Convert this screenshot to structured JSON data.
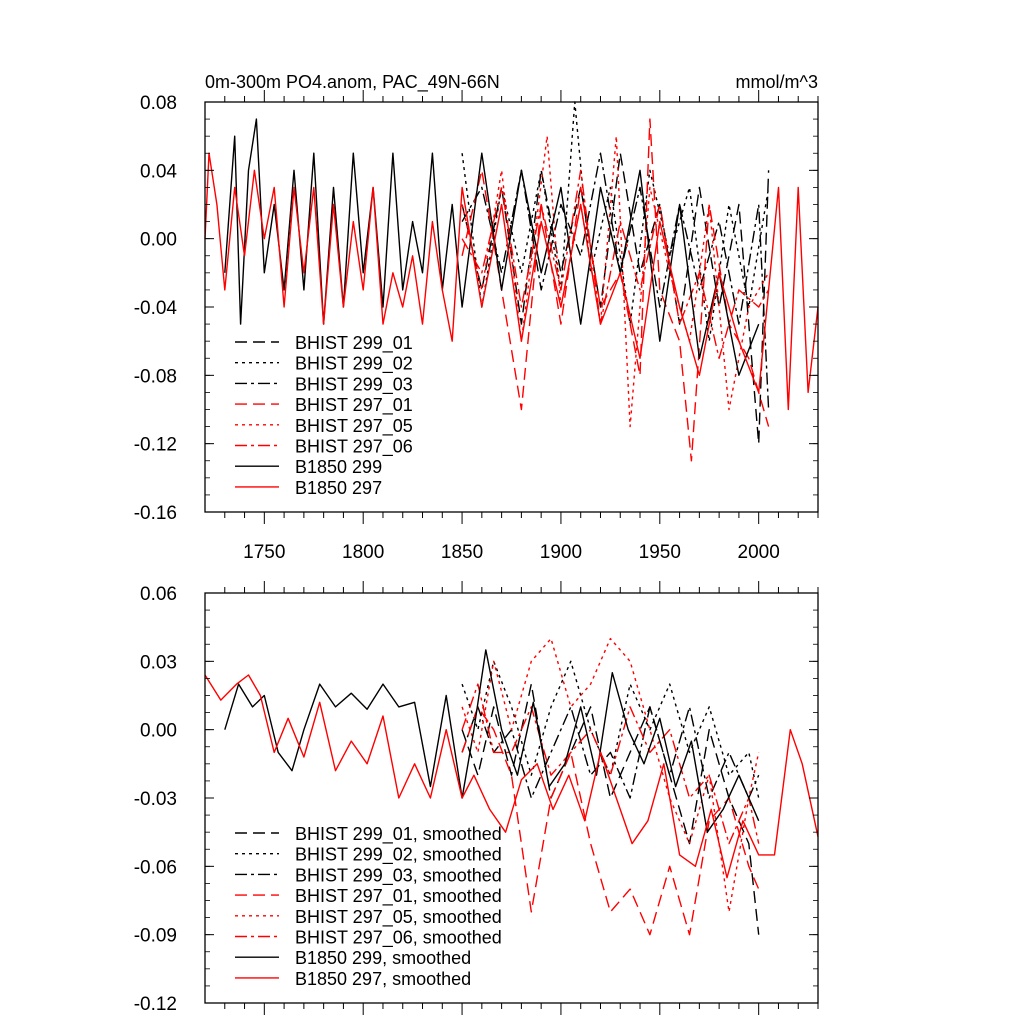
{
  "chart_data": [
    {
      "type": "line",
      "title": "0m-300m PO4.anom, PAC_49N-66N",
      "units": "mmol/m^3",
      "xlim": [
        1720,
        2030
      ],
      "ylim": [
        -0.16,
        0.08
      ],
      "x_ticks": [
        "1750",
        "1800",
        "1850",
        "1900",
        "1950",
        "2000"
      ],
      "y_ticks": [
        "0.08",
        "0.04",
        "0.00",
        "-0.04",
        "-0.08",
        "-0.12",
        "-0.16"
      ],
      "series": [
        {
          "name": "BHIST 299_01",
          "color": "#000000",
          "dash": "dash",
          "start": 1850,
          "end": 2005,
          "x": [
            1850,
            1860,
            1870,
            1880,
            1890,
            1900,
            1910,
            1920,
            1930,
            1940,
            1950,
            1960,
            1970,
            1980,
            1990,
            2000,
            2005
          ],
          "y": [
            0.02,
            -0.03,
            0.03,
            -0.05,
            0.04,
            -0.02,
            0.03,
            -0.04,
            0.05,
            -0.02,
            0.02,
            -0.05,
            0.03,
            -0.04,
            0.02,
            -0.12,
            0.04
          ]
        },
        {
          "name": "BHIST 299_02",
          "color": "#000000",
          "dash": "dot",
          "start": 1850,
          "end": 2005,
          "x": [
            1850,
            1860,
            1870,
            1880,
            1890,
            1900,
            1907,
            1915,
            1925,
            1935,
            1945,
            1955,
            1965,
            1975,
            1985,
            1995,
            2005
          ],
          "y": [
            0.05,
            -0.04,
            0.03,
            -0.02,
            0.04,
            -0.03,
            0.08,
            -0.02,
            0.03,
            -0.05,
            0.04,
            -0.01,
            0.03,
            -0.06,
            0.02,
            -0.04,
            0.03
          ]
        },
        {
          "name": "BHIST 299_03",
          "color": "#000000",
          "dash": "dashdot",
          "start": 1850,
          "end": 2005,
          "x": [
            1850,
            1860,
            1870,
            1880,
            1890,
            1900,
            1910,
            1920,
            1930,
            1940,
            1950,
            1960,
            1970,
            1980,
            1990,
            2000,
            2005
          ],
          "y": [
            0.01,
            0.03,
            -0.02,
            0.04,
            -0.03,
            0.02,
            -0.01,
            0.05,
            -0.02,
            0.03,
            -0.04,
            0.02,
            -0.03,
            0.01,
            -0.05,
            0.02,
            -0.1
          ]
        },
        {
          "name": "BHIST 297_01",
          "color": "#ff0000",
          "dash": "dash",
          "start": 1850,
          "end": 2005,
          "x": [
            1850,
            1860,
            1870,
            1880,
            1890,
            1900,
            1910,
            1920,
            1930,
            1940,
            1945,
            1950,
            1960,
            1966,
            1975,
            1985,
            1995,
            2005
          ],
          "y": [
            -0.01,
            0.04,
            -0.03,
            -0.1,
            0.02,
            -0.05,
            0.03,
            -0.04,
            -0.02,
            -0.08,
            0.07,
            -0.03,
            -0.06,
            -0.13,
            0.02,
            -0.05,
            -0.07,
            -0.11
          ]
        },
        {
          "name": "BHIST 297_05",
          "color": "#ff0000",
          "dash": "dot",
          "start": 1850,
          "end": 2005,
          "x": [
            1850,
            1860,
            1870,
            1880,
            1893,
            1900,
            1910,
            1920,
            1928,
            1935,
            1945,
            1955,
            1965,
            1975,
            1985,
            1995,
            2005
          ],
          "y": [
            0.02,
            -0.03,
            0.04,
            -0.06,
            0.06,
            -0.04,
            0.02,
            -0.05,
            0.06,
            -0.11,
            0.03,
            -0.02,
            -0.06,
            0.02,
            -0.1,
            -0.04,
            -0.02
          ]
        },
        {
          "name": "BHIST 297_06",
          "color": "#ff0000",
          "dash": "dashdot",
          "start": 1850,
          "end": 2005,
          "x": [
            1850,
            1860,
            1870,
            1880,
            1890,
            1900,
            1910,
            1920,
            1930,
            1940,
            1950,
            1960,
            1970,
            1980,
            1990,
            2000,
            2005
          ],
          "y": [
            0.0,
            -0.02,
            0.03,
            -0.04,
            0.02,
            -0.03,
            0.04,
            -0.05,
            0.01,
            -0.03,
            0.02,
            -0.05,
            -0.02,
            -0.07,
            -0.03,
            -0.04,
            -0.03
          ]
        },
        {
          "name": "B1850 299",
          "color": "#000000",
          "dash": "solid",
          "start": 1730,
          "end": 2000,
          "x": [
            1730,
            1735,
            1738,
            1742,
            1746,
            1750,
            1755,
            1760,
            1765,
            1770,
            1775,
            1780,
            1785,
            1790,
            1795,
            1800,
            1805,
            1810,
            1815,
            1820,
            1825,
            1830,
            1835,
            1840,
            1845,
            1850,
            1860,
            1870,
            1880,
            1890,
            1900,
            1910,
            1920,
            1930,
            1940,
            1950,
            1960,
            1970,
            1980,
            1990,
            2000
          ],
          "y": [
            -0.02,
            0.06,
            -0.05,
            0.04,
            0.07,
            -0.02,
            0.02,
            -0.03,
            0.04,
            -0.03,
            0.05,
            -0.05,
            0.03,
            -0.04,
            0.05,
            -0.02,
            0.03,
            -0.04,
            0.05,
            -0.03,
            0.01,
            -0.02,
            0.05,
            -0.03,
            0.02,
            -0.04,
            0.05,
            -0.03,
            0.04,
            -0.02,
            0.03,
            -0.05,
            0.03,
            -0.02,
            0.04,
            -0.06,
            0.02,
            -0.07,
            -0.02,
            -0.08,
            -0.05
          ]
        },
        {
          "name": "B1850 297",
          "color": "#ff0000",
          "dash": "solid",
          "start": 1720,
          "end": 2030,
          "x": [
            1720,
            1722,
            1726,
            1730,
            1735,
            1740,
            1745,
            1750,
            1755,
            1760,
            1765,
            1770,
            1775,
            1780,
            1785,
            1790,
            1795,
            1800,
            1805,
            1810,
            1815,
            1820,
            1825,
            1830,
            1835,
            1840,
            1845,
            1850,
            1860,
            1870,
            1880,
            1890,
            1900,
            1910,
            1920,
            1930,
            1940,
            1950,
            1960,
            1970,
            1980,
            1990,
            2000,
            2010,
            2015,
            2020,
            2025,
            2030
          ],
          "y": [
            0.0,
            0.05,
            0.02,
            -0.03,
            0.03,
            -0.01,
            0.04,
            0.0,
            0.03,
            -0.04,
            0.03,
            -0.02,
            0.03,
            -0.05,
            0.02,
            -0.04,
            0.01,
            -0.03,
            0.03,
            -0.05,
            -0.02,
            -0.04,
            -0.01,
            -0.05,
            0.01,
            -0.03,
            -0.06,
            0.03,
            -0.04,
            0.02,
            -0.06,
            0.01,
            -0.04,
            0.02,
            -0.05,
            -0.02,
            -0.07,
            0.01,
            -0.04,
            -0.08,
            -0.02,
            -0.06,
            -0.09,
            0.03,
            -0.1,
            0.03,
            -0.09,
            -0.04
          ]
        }
      ],
      "legend_position": "bottom-left"
    },
    {
      "type": "line",
      "xlim": [
        1720,
        2030
      ],
      "ylim": [
        -0.12,
        0.06
      ],
      "y_ticks": [
        "0.06",
        "0.03",
        "0.00",
        "-0.03",
        "-0.06",
        "-0.09",
        "-0.12"
      ],
      "series": [
        {
          "name": "BHIST 299_01, smoothed",
          "color": "#000000",
          "dash": "dash",
          "x": [
            1850,
            1858,
            1866,
            1875,
            1885,
            1895,
            1905,
            1915,
            1925,
            1935,
            1945,
            1955,
            1965,
            1975,
            1985,
            1995,
            2000
          ],
          "y": [
            0.0,
            -0.02,
            0.01,
            -0.02,
            0.02,
            -0.03,
            -0.01,
            0.01,
            -0.03,
            -0.01,
            0.01,
            -0.02,
            -0.05,
            0.0,
            -0.03,
            -0.05,
            -0.09
          ]
        },
        {
          "name": "BHIST 299_02, smoothed",
          "color": "#000000",
          "dash": "dot",
          "x": [
            1850,
            1858,
            1866,
            1875,
            1885,
            1895,
            1905,
            1915,
            1925,
            1935,
            1945,
            1955,
            1965,
            1975,
            1985,
            1995,
            2000
          ],
          "y": [
            0.02,
            0.0,
            0.03,
            0.01,
            -0.02,
            0.01,
            0.03,
            0.0,
            -0.02,
            0.02,
            0.0,
            0.02,
            -0.01,
            0.01,
            -0.02,
            -0.01,
            -0.03
          ]
        },
        {
          "name": "BHIST 299_03, smoothed",
          "color": "#000000",
          "dash": "dashdot",
          "x": [
            1850,
            1858,
            1866,
            1875,
            1885,
            1895,
            1905,
            1915,
            1925,
            1935,
            1945,
            1955,
            1965,
            1975,
            1985,
            1995,
            2000
          ],
          "y": [
            -0.01,
            0.01,
            -0.01,
            0.0,
            -0.03,
            -0.01,
            0.01,
            -0.02,
            -0.01,
            -0.03,
            0.01,
            -0.02,
            0.01,
            -0.03,
            -0.01,
            -0.03,
            -0.02
          ]
        },
        {
          "name": "BHIST 297_01, smoothed",
          "color": "#ff0000",
          "dash": "dash",
          "x": [
            1850,
            1858,
            1866,
            1875,
            1885,
            1895,
            1905,
            1915,
            1925,
            1935,
            1945,
            1955,
            1965,
            1975,
            1985,
            1995,
            2000
          ],
          "y": [
            -0.01,
            0.01,
            0.0,
            -0.02,
            -0.08,
            -0.03,
            -0.01,
            -0.05,
            -0.08,
            -0.07,
            -0.09,
            -0.06,
            -0.09,
            -0.04,
            -0.03,
            -0.06,
            -0.07
          ]
        },
        {
          "name": "BHIST 297_05, smoothed",
          "color": "#ff0000",
          "dash": "dot",
          "x": [
            1850,
            1858,
            1866,
            1875,
            1885,
            1895,
            1905,
            1915,
            1925,
            1935,
            1945,
            1955,
            1965,
            1975,
            1985,
            1995,
            2000
          ],
          "y": [
            0.01,
            -0.01,
            0.03,
            0.0,
            0.03,
            0.04,
            0.01,
            0.02,
            0.04,
            0.03,
            0.0,
            -0.03,
            -0.05,
            -0.02,
            -0.08,
            -0.03,
            -0.01
          ]
        },
        {
          "name": "BHIST 297_06, smoothed",
          "color": "#ff0000",
          "dash": "dashdot",
          "x": [
            1850,
            1858,
            1866,
            1875,
            1885,
            1895,
            1905,
            1915,
            1925,
            1935,
            1945,
            1955,
            1965,
            1975,
            1985,
            1995,
            2000
          ],
          "y": [
            0.0,
            0.02,
            -0.01,
            -0.01,
            0.01,
            -0.02,
            -0.01,
            0.0,
            -0.02,
            0.01,
            -0.01,
            0.0,
            -0.03,
            -0.02,
            -0.05,
            -0.03,
            -0.05
          ]
        },
        {
          "name": "B1850 299, smoothed",
          "color": "#000000",
          "dash": "solid",
          "x": [
            1730,
            1737,
            1744,
            1750,
            1757,
            1764,
            1770,
            1778,
            1786,
            1794,
            1802,
            1810,
            1818,
            1826,
            1834,
            1842,
            1850,
            1856,
            1862,
            1870,
            1878,
            1886,
            1894,
            1902,
            1910,
            1918,
            1926,
            1934,
            1942,
            1950,
            1958,
            1966,
            1974,
            1982,
            1990,
            2000
          ],
          "y": [
            0.0,
            0.02,
            0.01,
            0.015,
            -0.01,
            -0.018,
            0.0,
            0.02,
            0.01,
            0.016,
            0.009,
            0.02,
            0.01,
            0.012,
            -0.025,
            0.015,
            -0.03,
            0.0,
            0.035,
            0.0,
            -0.02,
            0.012,
            -0.025,
            -0.015,
            0.01,
            -0.02,
            0.025,
            0.0,
            -0.015,
            0.005,
            -0.025,
            -0.005,
            -0.045,
            -0.035,
            -0.02,
            -0.04
          ]
        },
        {
          "name": "B1850 297, smoothed",
          "color": "#ff0000",
          "dash": "solid",
          "x": [
            1720,
            1728,
            1736,
            1742,
            1748,
            1755,
            1762,
            1770,
            1778,
            1786,
            1794,
            1802,
            1810,
            1818,
            1826,
            1834,
            1842,
            1850,
            1856,
            1864,
            1872,
            1880,
            1888,
            1896,
            1904,
            1912,
            1920,
            1928,
            1936,
            1944,
            1952,
            1960,
            1968,
            1976,
            1984,
            1992,
            2000,
            2008,
            2016,
            2022,
            2030
          ],
          "y": [
            0.024,
            0.013,
            0.02,
            0.024,
            0.015,
            -0.01,
            0.005,
            -0.012,
            0.012,
            -0.018,
            -0.005,
            -0.015,
            0.006,
            -0.03,
            -0.015,
            -0.03,
            0.0,
            -0.03,
            -0.02,
            -0.035,
            -0.045,
            -0.022,
            -0.015,
            -0.035,
            -0.02,
            -0.04,
            -0.01,
            -0.03,
            -0.05,
            -0.04,
            -0.015,
            -0.055,
            -0.06,
            -0.035,
            -0.065,
            -0.04,
            -0.055,
            -0.055,
            0.0,
            -0.015,
            -0.047
          ]
        }
      ],
      "legend_position": "bottom-left"
    }
  ]
}
